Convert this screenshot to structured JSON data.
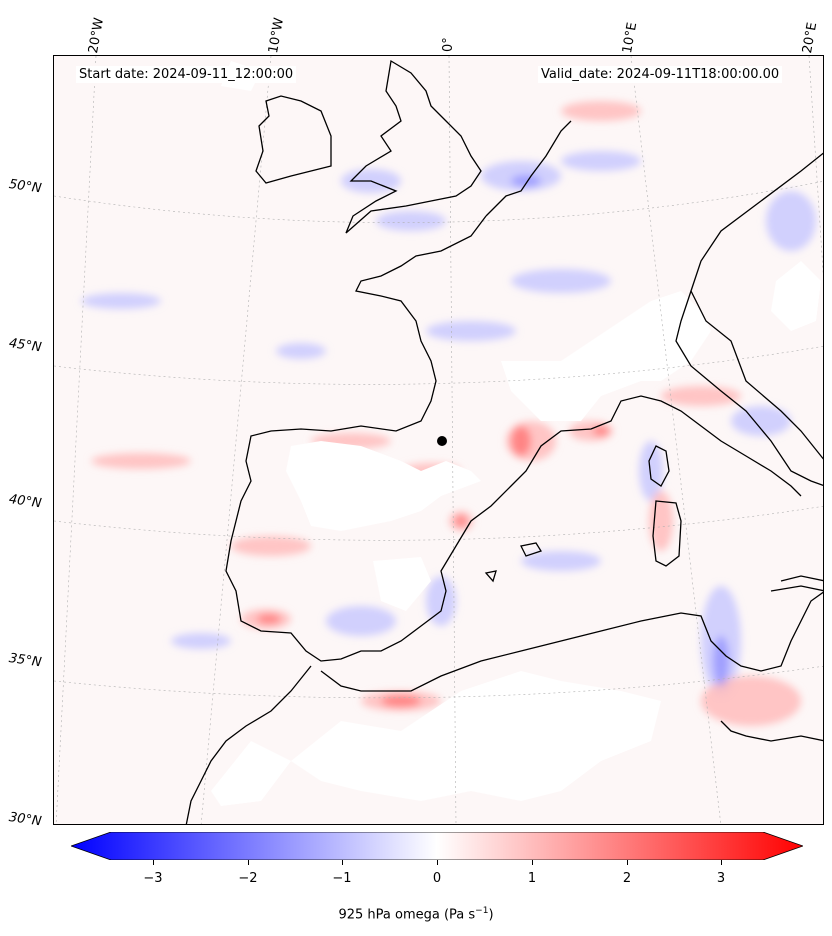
{
  "map": {
    "start_date": "Start date: 2024-09-11_12:00:00",
    "valid_date": "Valid_date: 2024-09-11T18:00:00.00",
    "longitude_labels": [
      "20°W",
      "10°W",
      "0°",
      "10°E",
      "20°E"
    ],
    "latitude_labels": [
      "50°N",
      "45°N",
      "40°N",
      "35°N",
      "30°N"
    ],
    "field": "925 hPa omega",
    "colormap": "bwr",
    "colors": {
      "negative": "#0000ff",
      "zero": "#ffffff",
      "positive": "#ff0000",
      "coastline": "#000000",
      "grid": "#b0b0b0"
    }
  },
  "colorbar": {
    "ticks": [
      "−3",
      "−2",
      "−1",
      "0",
      "1",
      "2",
      "3"
    ],
    "range": [
      -3.7,
      3.7
    ],
    "label": "925 hPa omega (Pa s",
    "label_exp": "−1",
    "label_end": ")"
  }
}
